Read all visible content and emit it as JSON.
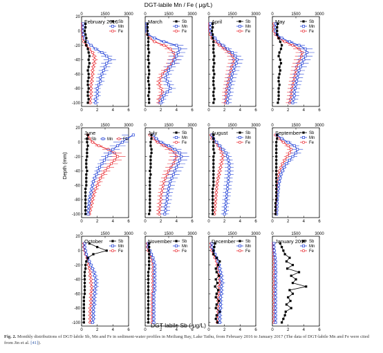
{
  "figure": {
    "top_axis_label": "DGT-labile Mn / Fe ( μg/L)",
    "bottom_axis_label": "DGT-labile Sb ( μg/L)",
    "y_axis_label": "Depth (mm)",
    "caption_prefix": "Fig. 2.",
    "caption_body": " Monthly distributions of DGT-labile Sb, Mn and Fe in sediment-water profiles in Meiliang Bay, Lake Taihu, from February 2016 to January 2017 (The data of DGT-labile Mn and Fe were cited from Jin et al. ",
    "caption_ref": "[41]",
    "caption_suffix": ")."
  },
  "colors": {
    "Sb": "#000000",
    "Mn": "#1f3fd6",
    "Fe": "#e8242b"
  },
  "chart_data": {
    "type": "line",
    "layout": "small-multiples 3x4",
    "x_bottom": {
      "label": "DGT-labile Sb ( μg/L)",
      "range": [
        0,
        6
      ],
      "ticks": [
        0,
        2,
        4,
        6
      ]
    },
    "x_top": {
      "label": "DGT-labile Mn / Fe ( μg/L)",
      "range": [
        0,
        3000
      ],
      "ticks": [
        0,
        1500,
        3000
      ]
    },
    "y": {
      "label": "Depth (mm)",
      "range": [
        20,
        -105
      ],
      "ticks": [
        20,
        0,
        -20,
        -40,
        -60,
        -80,
        -100
      ]
    },
    "depths": [
      10,
      5,
      0,
      -5,
      -10,
      -15,
      -20,
      -25,
      -30,
      -35,
      -40,
      -45,
      -50,
      -55,
      -60,
      -65,
      -70,
      -75,
      -80,
      -85,
      -90,
      -95,
      -100
    ],
    "legend_names": [
      "Sb",
      "Mn",
      "Fe"
    ],
    "panels": [
      {
        "title": "February 2016",
        "Sb": [
          0.5,
          0.5,
          0.4,
          0.5,
          0.6,
          0.5,
          0.6,
          0.8,
          0.9,
          1.0,
          0.9,
          1.0,
          0.9,
          0.8,
          0.9,
          0.9,
          0.8,
          0.8,
          0.9,
          0.8,
          0.8,
          0.9,
          0.8
        ],
        "Mn": [
          100,
          100,
          100,
          120,
          200,
          350,
          600,
          900,
          1300,
          1600,
          1800,
          1600,
          1500,
          1400,
          1300,
          1200,
          1200,
          1100,
          1000,
          1000,
          1000,
          900,
          900
        ],
        "Fe": [
          50,
          50,
          50,
          60,
          80,
          150,
          300,
          500,
          700,
          800,
          850,
          800,
          750,
          700,
          700,
          650,
          650,
          600,
          600,
          600,
          600,
          550,
          550
        ]
      },
      {
        "title": "March",
        "Sb": [
          0.3,
          0.3,
          0.3,
          0.3,
          0.4,
          0.4,
          0.4,
          0.4,
          0.5,
          0.4,
          0.4,
          0.5,
          0.4,
          0.5,
          0.5,
          0.4,
          0.4,
          0.5,
          0.5,
          0.5,
          0.4,
          0.5,
          0.5
        ],
        "Mn": [
          100,
          100,
          100,
          200,
          600,
          1200,
          2000,
          2200,
          2100,
          2000,
          1900,
          1800,
          1600,
          1500,
          1400,
          1300,
          1400,
          1500,
          1600,
          1400,
          1200,
          1100,
          1000
        ],
        "Fe": [
          100,
          100,
          100,
          150,
          300,
          600,
          1200,
          1600,
          1800,
          1900,
          1800,
          1700,
          1500,
          1300,
          1100,
          1000,
          900,
          900,
          1000,
          1100,
          1000,
          900,
          900
        ]
      },
      {
        "title": "April",
        "Sb": [
          0.5,
          0.5,
          0.4,
          0.5,
          0.5,
          0.6,
          0.6,
          0.6,
          0.6,
          0.7,
          0.6,
          0.7,
          0.6,
          0.6,
          0.7,
          0.6,
          0.6,
          0.6,
          0.7,
          0.6,
          0.6,
          0.7,
          0.6
        ],
        "Mn": [
          100,
          100,
          100,
          200,
          400,
          600,
          900,
          1200,
          1500,
          1700,
          1800,
          1750,
          1650,
          1600,
          1500,
          1450,
          1400,
          1350,
          1300,
          1300,
          1250,
          1200,
          1200
        ],
        "Fe": [
          50,
          50,
          50,
          100,
          200,
          400,
          700,
          1000,
          1300,
          1500,
          1600,
          1550,
          1450,
          1400,
          1350,
          1300,
          1250,
          1200,
          1150,
          1100,
          1100,
          1100,
          1050
        ]
      },
      {
        "title": "May",
        "Sb": [
          0.7,
          0.6,
          0.6,
          0.6,
          0.8,
          1.0,
          1.2,
          1.1,
          0.9,
          0.8,
          1.0,
          1.1,
          0.9,
          1.0,
          0.9,
          0.8,
          0.8,
          0.9,
          0.8,
          0.8,
          0.8,
          0.8,
          0.7
        ],
        "Mn": [
          200,
          200,
          200,
          300,
          600,
          1100,
          1700,
          2100,
          2200,
          2100,
          2000,
          1900,
          1800,
          1700,
          1650,
          1600,
          1550,
          1500,
          1450,
          1400,
          1400,
          1350,
          1300
        ],
        "Fe": [
          100,
          100,
          100,
          200,
          400,
          800,
          1300,
          1700,
          1900,
          1850,
          1750,
          1650,
          1550,
          1500,
          1450,
          1400,
          1350,
          1300,
          1250,
          1200,
          1200,
          1150,
          1100
        ]
      },
      {
        "title": "June",
        "Sb": [
          0.8,
          0.7,
          0.7,
          0.8,
          0.7,
          0.7,
          0.7,
          0.6,
          0.6,
          0.6,
          0.7,
          0.6,
          0.6,
          0.6,
          0.6,
          0.5,
          0.5,
          0.5,
          0.5,
          0.5,
          0.5,
          0.5,
          0.5
        ],
        "Mn": [
          3300,
          2900,
          2600,
          2300,
          2000,
          1800,
          1600,
          1450,
          1300,
          1150,
          1050,
          950,
          850,
          750,
          700,
          650,
          600,
          550,
          500,
          480,
          450,
          430,
          420
        ],
        "Fe": [
          400,
          500,
          700,
          1100,
          1700,
          2100,
          2300,
          2100,
          1900,
          1700,
          1500,
          1350,
          1200,
          1100,
          1000,
          900,
          800,
          750,
          700,
          650,
          600,
          550,
          500
        ]
      },
      {
        "title": "July",
        "Sb": [
          0.8,
          0.8,
          0.7,
          0.7,
          0.8,
          0.8,
          0.7,
          0.7,
          0.7,
          0.7,
          0.6,
          0.7,
          0.6,
          0.6,
          0.6,
          0.6,
          0.6,
          0.6,
          0.6,
          0.6,
          0.6,
          0.6,
          0.5
        ],
        "Mn": [
          500,
          700,
          1000,
          1500,
          1900,
          2200,
          2300,
          2200,
          2100,
          2000,
          1900,
          1800,
          1700,
          1600,
          1550,
          1500,
          1450,
          1400,
          1400,
          1350,
          1300,
          1300,
          1250
        ],
        "Fe": [
          300,
          500,
          800,
          1200,
          1600,
          1900,
          2000,
          1900,
          1800,
          1650,
          1500,
          1400,
          1300,
          1200,
          1150,
          1100,
          1050,
          1000,
          1000,
          950,
          950,
          900,
          900
        ]
      },
      {
        "title": "August",
        "Sb": [
          0.6,
          0.6,
          0.6,
          0.6,
          0.6,
          0.7,
          0.6,
          0.6,
          0.6,
          0.6,
          0.6,
          0.6,
          0.6,
          0.6,
          0.6,
          0.5,
          0.5,
          0.5,
          0.5,
          0.5,
          0.5,
          0.5,
          0.5
        ],
        "Mn": [
          200,
          300,
          500,
          700,
          900,
          1100,
          1200,
          1250,
          1300,
          1300,
          1300,
          1300,
          1250,
          1250,
          1200,
          1200,
          1150,
          1150,
          1100,
          1100,
          1050,
          1050,
          1000
        ],
        "Fe": [
          150,
          200,
          400,
          600,
          750,
          850,
          900,
          850,
          800,
          750,
          700,
          650,
          600,
          550,
          520,
          500,
          480,
          460,
          440,
          420,
          400,
          380,
          360
        ]
      },
      {
        "title": "September",
        "Sb": [
          0.6,
          0.6,
          0.5,
          0.5,
          0.5,
          0.5,
          0.5,
          0.5,
          0.5,
          0.5,
          0.5,
          0.5,
          0.5,
          0.5,
          0.5,
          0.5,
          0.5,
          0.5,
          0.5,
          0.4,
          0.4,
          0.4,
          0.4
        ],
        "Mn": [
          300,
          600,
          1000,
          1400,
          1600,
          1500,
          1300,
          1100,
          900,
          750,
          650,
          550,
          500,
          450,
          400,
          380,
          350,
          330,
          310,
          300,
          290,
          280,
          270
        ],
        "Fe": [
          200,
          400,
          700,
          1000,
          1200,
          1100,
          950,
          800,
          650,
          550,
          450,
          400,
          350,
          330,
          300,
          290,
          280,
          270,
          260,
          250,
          240,
          230,
          220
        ]
      },
      {
        "title": "October",
        "Sb": [
          1.0,
          2.0,
          3.2,
          1.5,
          0.8,
          0.6,
          0.5,
          0.5,
          0.4,
          0.4,
          0.4,
          0.4,
          0.4,
          0.4,
          0.4,
          0.3,
          0.3,
          0.3,
          0.3,
          0.3,
          0.3,
          0.3,
          0.3
        ],
        "Mn": [
          200,
          200,
          250,
          300,
          400,
          500,
          600,
          700,
          800,
          850,
          900,
          900,
          900,
          850,
          850,
          800,
          800,
          800,
          750,
          750,
          750,
          750,
          700
        ],
        "Fe": [
          150,
          150,
          200,
          250,
          350,
          400,
          450,
          500,
          550,
          550,
          600,
          600,
          650,
          650,
          600,
          600,
          600,
          600,
          550,
          550,
          550,
          550,
          550
        ]
      },
      {
        "title": "November",
        "Sb": [
          0.5,
          0.5,
          0.5,
          0.5,
          0.5,
          0.5,
          0.5,
          0.5,
          0.4,
          0.4,
          0.4,
          0.4,
          0.4,
          0.4,
          0.4,
          0.4,
          0.4,
          0.4,
          0.4,
          0.4,
          0.4,
          0.4,
          0.4
        ],
        "Mn": [
          200,
          200,
          300,
          400,
          500,
          550,
          600,
          600,
          600,
          600,
          600,
          600,
          600,
          600,
          550,
          550,
          550,
          550,
          550,
          550,
          550,
          550,
          550
        ],
        "Fe": [
          150,
          150,
          200,
          300,
          400,
          450,
          500,
          500,
          500,
          500,
          500,
          500,
          500,
          500,
          450,
          450,
          450,
          450,
          450,
          450,
          450,
          450,
          450
        ]
      },
      {
        "title": "December",
        "Sb": [
          0.8,
          0.7,
          0.6,
          0.6,
          1.0,
          1.4,
          1.2,
          0.9,
          1.0,
          1.3,
          0.9,
          1.1,
          0.8,
          1.2,
          1.0,
          0.9,
          1.3,
          1.0,
          0.9,
          1.4,
          1.0,
          0.9,
          1.1
        ],
        "Mn": [
          200,
          200,
          300,
          400,
          500,
          600,
          650,
          700,
          750,
          800,
          800,
          850,
          800,
          800,
          800,
          750,
          750,
          750,
          750,
          700,
          700,
          700,
          700
        ],
        "Fe": [
          150,
          150,
          200,
          300,
          400,
          500,
          550,
          600,
          600,
          650,
          700,
          700,
          650,
          650,
          650,
          600,
          600,
          600,
          600,
          600,
          550,
          550,
          550
        ]
      },
      {
        "title": "January 2017",
        "Sb": [
          1.0,
          1.2,
          1.4,
          1.6,
          2.2,
          1.8,
          2.6,
          1.9,
          3.4,
          2.4,
          3.0,
          2.6,
          4.3,
          2.2,
          2.6,
          2.0,
          2.3,
          1.8,
          2.4,
          1.7,
          1.6,
          1.4,
          1.2
        ],
        "Mn": [
          100,
          100,
          120,
          150,
          180,
          200,
          200,
          200,
          220,
          200,
          200,
          220,
          200,
          200,
          200,
          200,
          200,
          200,
          200,
          200,
          200,
          200,
          200
        ],
        "Fe": [
          60,
          60,
          70,
          80,
          90,
          100,
          100,
          100,
          110,
          100,
          100,
          110,
          100,
          100,
          100,
          100,
          100,
          100,
          100,
          100,
          100,
          100,
          100
        ]
      }
    ]
  }
}
